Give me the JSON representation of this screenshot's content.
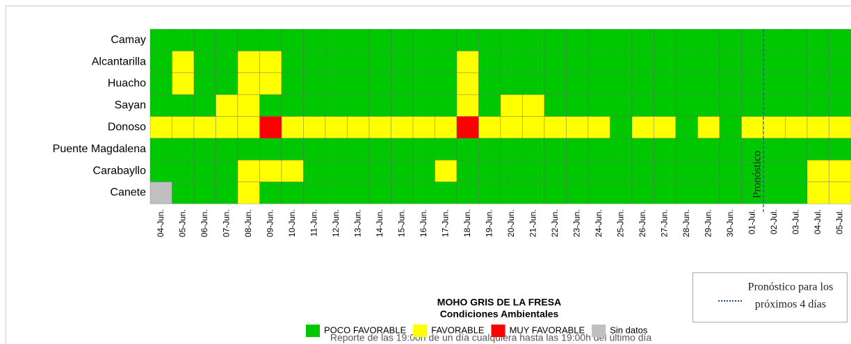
{
  "chart_data": {
    "type": "heatmap",
    "title": "MOHO GRIS DE LA FRESA",
    "subtitle": "Condiciones Ambientales",
    "note": "Reporte de las 19:00h de un día cualquiera hasta las 19:00h del último día",
    "forecast_label": "Pronóstico",
    "forecast_legend": [
      "Pronóstico para los",
      "próximos 4 días"
    ],
    "levels": [
      {
        "name": "POCO FAVORABLE",
        "color": "#00c800"
      },
      {
        "name": "FAVORABLE",
        "color": "#ffff00"
      },
      {
        "name": "MUY FAVORABLE",
        "color": "#ff0000"
      },
      {
        "name": "Sin datos",
        "color": "#c0c0c0"
      }
    ],
    "rows": [
      "Camay",
      "Alcantarilla",
      "Huacho",
      "Sayan",
      "Donoso",
      "Puente Magdalena",
      "Carabayllo",
      "Canete"
    ],
    "columns": [
      "04-Jun.",
      "05-Jun.",
      "06-Jun.",
      "07-Jun.",
      "08-Jun.",
      "09-Jun.",
      "10-Jun.",
      "11-Jun.",
      "12-Jun.",
      "13-Jun.",
      "14-Jun.",
      "15-Jun.",
      "16-Jun.",
      "17-Jun.",
      "18-Jun.",
      "19-Jun.",
      "20-Jun.",
      "21-Jun.",
      "22-Jun.",
      "23-Jun.",
      "24-Jun.",
      "25-Jun.",
      "26-Jun.",
      "27-Jun.",
      "28-Jun.",
      "29-Jun.",
      "30-Jun.",
      "01-Jul.",
      "02-Jul.",
      "03-Jul.",
      "04-Jul.",
      "05-Jul."
    ],
    "values": [
      [
        0,
        0,
        0,
        0,
        0,
        0,
        0,
        0,
        0,
        0,
        0,
        0,
        0,
        0,
        0,
        0,
        0,
        0,
        0,
        0,
        0,
        0,
        0,
        0,
        0,
        0,
        0,
        0,
        0,
        0,
        0,
        0
      ],
      [
        0,
        1,
        0,
        0,
        1,
        1,
        0,
        0,
        0,
        0,
        0,
        0,
        0,
        0,
        1,
        0,
        0,
        0,
        0,
        0,
        0,
        0,
        0,
        0,
        0,
        0,
        0,
        0,
        0,
        0,
        0,
        0
      ],
      [
        0,
        1,
        0,
        0,
        1,
        1,
        0,
        0,
        0,
        0,
        0,
        0,
        0,
        0,
        1,
        0,
        0,
        0,
        0,
        0,
        0,
        0,
        0,
        0,
        0,
        0,
        0,
        0,
        0,
        0,
        0,
        0
      ],
      [
        0,
        0,
        0,
        1,
        1,
        0,
        0,
        0,
        0,
        0,
        0,
        0,
        0,
        0,
        1,
        0,
        1,
        1,
        0,
        0,
        0,
        0,
        0,
        0,
        0,
        0,
        0,
        0,
        0,
        0,
        0,
        0
      ],
      [
        1,
        1,
        1,
        1,
        1,
        2,
        1,
        1,
        1,
        1,
        1,
        1,
        1,
        1,
        2,
        1,
        1,
        1,
        1,
        1,
        1,
        0,
        1,
        1,
        0,
        1,
        0,
        1,
        1,
        1,
        1,
        1
      ],
      [
        0,
        0,
        0,
        0,
        0,
        0,
        0,
        0,
        0,
        0,
        0,
        0,
        0,
        0,
        0,
        0,
        0,
        0,
        0,
        0,
        0,
        0,
        0,
        0,
        0,
        0,
        0,
        0,
        0,
        0,
        0,
        0
      ],
      [
        0,
        0,
        0,
        0,
        1,
        1,
        1,
        0,
        0,
        0,
        0,
        0,
        0,
        1,
        0,
        0,
        0,
        0,
        0,
        0,
        0,
        0,
        0,
        0,
        0,
        0,
        0,
        0,
        0,
        0,
        1,
        1
      ],
      [
        3,
        0,
        0,
        0,
        1,
        0,
        0,
        0,
        0,
        0,
        0,
        0,
        0,
        0,
        0,
        0,
        0,
        0,
        0,
        0,
        0,
        0,
        0,
        0,
        0,
        0,
        0,
        0,
        0,
        0,
        1,
        1
      ]
    ]
  }
}
